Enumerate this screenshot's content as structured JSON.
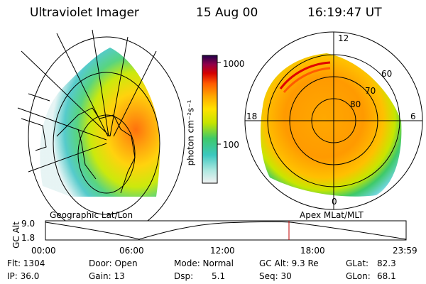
{
  "header": {
    "instrument": "Ultraviolet Imager",
    "date": "15 Aug 00",
    "time": "16:19:47 UT"
  },
  "colorbar": {
    "unit_label": "photon cm⁻²s⁻¹",
    "ticks": [
      "1000",
      "100"
    ]
  },
  "left_panel": {
    "label": "Geographic Lat/Lon"
  },
  "right_panel": {
    "label": "Apex MLat/MLT",
    "mlt_labels": {
      "top": "12",
      "left": "18",
      "right": "6",
      "bottom": "0"
    },
    "lat_labels": [
      "60",
      "70",
      "80"
    ]
  },
  "timeline": {
    "ylabel": "GC Alt",
    "y_ticks": [
      "9.0",
      "1.8"
    ],
    "x_ticks": [
      "00:00",
      "06:00",
      "12:00",
      "18:00",
      "23:59"
    ],
    "marker_time": "16:19:47"
  },
  "status": {
    "flt": "Flt: 1304",
    "ip": "IP: 36.0",
    "door": "Door: Open",
    "gain": "Gain: 13",
    "mode": "Mode: Normal",
    "dsp": "Dsp:",
    "dsp_val": "5.1",
    "gcalt": "GC Alt: 9.3 Re",
    "seq": "Seq: 30",
    "glat": "GLat:",
    "glat_val": "82.3",
    "glon": "GLon:",
    "glon_val": "68.1"
  }
}
